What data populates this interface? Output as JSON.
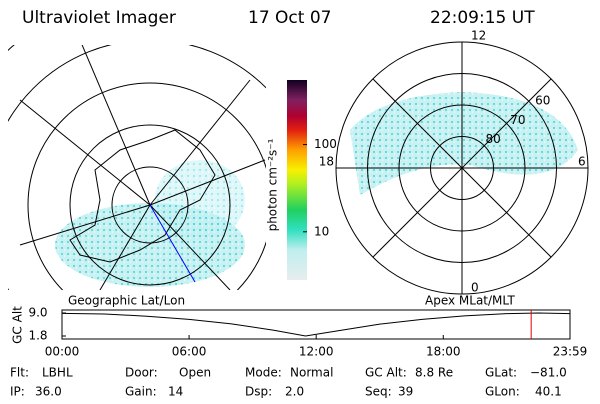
{
  "header": {
    "title": "Ultraviolet Imager",
    "date": "17 Oct 07",
    "time": "22:09:15 UT"
  },
  "colorbar": {
    "label": "photon cm⁻²s⁻¹",
    "log": true,
    "clim": [
      2.8,
      550
    ],
    "ticks": [
      10,
      100
    ]
  },
  "polar": {
    "lat_labels": [
      60,
      70,
      80
    ],
    "mlt_labels": [
      12,
      18,
      6,
      0
    ]
  },
  "captions": {
    "left": "Geographic Lat/Lon",
    "right": "Apex MLat/MLT"
  },
  "altitude": {
    "ylabel": "GC Alt",
    "ylim": [
      1.8,
      9.0
    ],
    "yticks": [
      {
        "value": 9.0,
        "label": "9.0"
      },
      {
        "value": 1.8,
        "label": "1.8"
      }
    ],
    "xlim": [
      0,
      23.983
    ],
    "xticks": [
      {
        "value": 0,
        "label": "00:00"
      },
      {
        "value": 6,
        "label": "06:00"
      },
      {
        "value": 12,
        "label": "12:00"
      },
      {
        "value": 18,
        "label": "18:00"
      },
      {
        "value": 23.983,
        "label": "23:59"
      }
    ],
    "x": [
      0,
      2,
      4,
      6,
      8,
      10,
      11.5,
      13,
      15,
      17,
      19,
      21,
      22.5,
      23.983
    ],
    "values": [
      8.9,
      8.7,
      8.0,
      7.0,
      5.6,
      3.6,
      1.8,
      3.4,
      5.5,
      7.0,
      8.1,
      8.8,
      9.0,
      8.8
    ],
    "line_color": "#000000",
    "marker_x": 22.15,
    "marker_color": "#dd0000"
  },
  "info": {
    "rows": [
      [
        [
          "Flt:",
          "LBHL"
        ],
        [
          "Door:",
          "Open"
        ],
        [
          "Mode:",
          "Normal"
        ],
        [
          "GC Alt:",
          "8.8 Re"
        ],
        [
          "GLat:",
          "−81.0"
        ]
      ],
      [
        [
          "IP:",
          "36.0"
        ],
        [
          "Gain:",
          "14"
        ],
        [
          "Dsp:",
          "2.0"
        ],
        [
          "Seq:",
          "39"
        ],
        [
          "GLon:",
          "40.1"
        ]
      ]
    ]
  }
}
